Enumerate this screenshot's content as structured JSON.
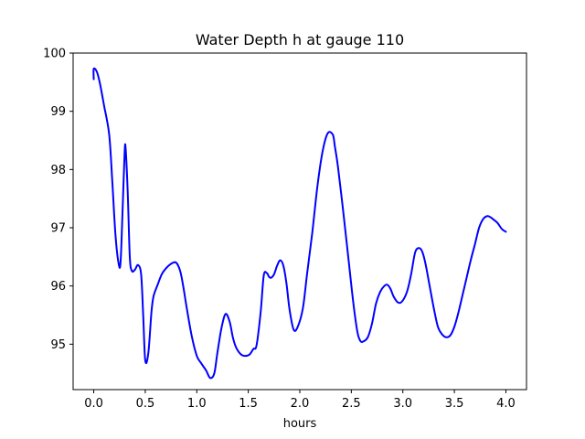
{
  "chart_data": {
    "type": "line",
    "title": "Water Depth h at gauge 110",
    "xlabel": "hours",
    "ylabel": "",
    "xlim": [
      -0.2,
      4.2
    ],
    "ylim": [
      94.22,
      100.0
    ],
    "xticks": [
      0.0,
      0.5,
      1.0,
      1.5,
      2.0,
      2.5,
      3.0,
      3.5,
      4.0
    ],
    "xtick_labels": [
      "0.0",
      "0.5",
      "1.0",
      "1.5",
      "2.0",
      "2.5",
      "3.0",
      "3.5",
      "4.0"
    ],
    "yticks": [
      95,
      96,
      97,
      98,
      99,
      100
    ],
    "ytick_labels": [
      "95",
      "96",
      "97",
      "98",
      "99",
      "100"
    ],
    "grid": false,
    "series": [
      {
        "color": "#0000ff",
        "x": [
          0.0,
          0.0,
          0.03,
          0.06,
          0.1,
          0.15,
          0.18,
          0.21,
          0.24,
          0.26,
          0.28,
          0.3,
          0.31,
          0.33,
          0.35,
          0.37,
          0.4,
          0.43,
          0.46,
          0.48,
          0.5,
          0.53,
          0.56,
          0.58,
          0.62,
          0.66,
          0.7,
          0.75,
          0.8,
          0.84,
          0.87,
          0.9,
          0.95,
          1.0,
          1.04,
          1.09,
          1.13,
          1.17,
          1.2,
          1.24,
          1.28,
          1.32,
          1.35,
          1.38,
          1.42,
          1.46,
          1.51,
          1.55,
          1.58,
          1.62,
          1.65,
          1.68,
          1.7,
          1.72,
          1.75,
          1.78,
          1.81,
          1.84,
          1.87,
          1.9,
          1.94,
          1.98,
          2.03,
          2.07,
          2.12,
          2.17,
          2.22,
          2.27,
          2.32,
          2.34,
          2.37,
          2.42,
          2.47,
          2.52,
          2.56,
          2.59,
          2.62,
          2.66,
          2.7,
          2.74,
          2.78,
          2.82,
          2.85,
          2.88,
          2.91,
          2.95,
          2.99,
          3.04,
          3.08,
          3.12,
          3.16,
          3.19,
          3.22,
          3.26,
          3.3,
          3.34,
          3.38,
          3.42,
          3.46,
          3.5,
          3.54,
          3.58,
          3.62,
          3.66,
          3.7,
          3.74,
          3.78,
          3.82,
          3.85,
          3.88,
          3.92,
          3.96,
          4.0
        ],
        "y": [
          99.55,
          99.73,
          99.68,
          99.48,
          99.1,
          98.6,
          97.8,
          96.9,
          96.4,
          96.4,
          97.3,
          98.3,
          98.35,
          97.6,
          96.5,
          96.26,
          96.28,
          96.36,
          96.2,
          95.5,
          94.72,
          94.85,
          95.55,
          95.82,
          96.02,
          96.2,
          96.3,
          96.38,
          96.4,
          96.25,
          95.98,
          95.65,
          95.15,
          94.8,
          94.68,
          94.55,
          94.42,
          94.5,
          94.85,
          95.28,
          95.52,
          95.38,
          95.12,
          94.95,
          94.84,
          94.8,
          94.82,
          94.92,
          94.98,
          95.55,
          96.18,
          96.22,
          96.16,
          96.14,
          96.2,
          96.35,
          96.44,
          96.35,
          96.05,
          95.6,
          95.25,
          95.3,
          95.62,
          96.2,
          96.9,
          97.7,
          98.3,
          98.62,
          98.6,
          98.4,
          98.05,
          97.3,
          96.5,
          95.7,
          95.2,
          95.05,
          95.05,
          95.12,
          95.35,
          95.7,
          95.9,
          96.0,
          96.02,
          95.95,
          95.82,
          95.72,
          95.73,
          95.9,
          96.2,
          96.58,
          96.65,
          96.58,
          96.38,
          96.0,
          95.62,
          95.3,
          95.17,
          95.12,
          95.15,
          95.3,
          95.55,
          95.85,
          96.15,
          96.45,
          96.72,
          97.0,
          97.15,
          97.2,
          97.18,
          97.14,
          97.08,
          96.98,
          96.93
        ]
      }
    ]
  }
}
